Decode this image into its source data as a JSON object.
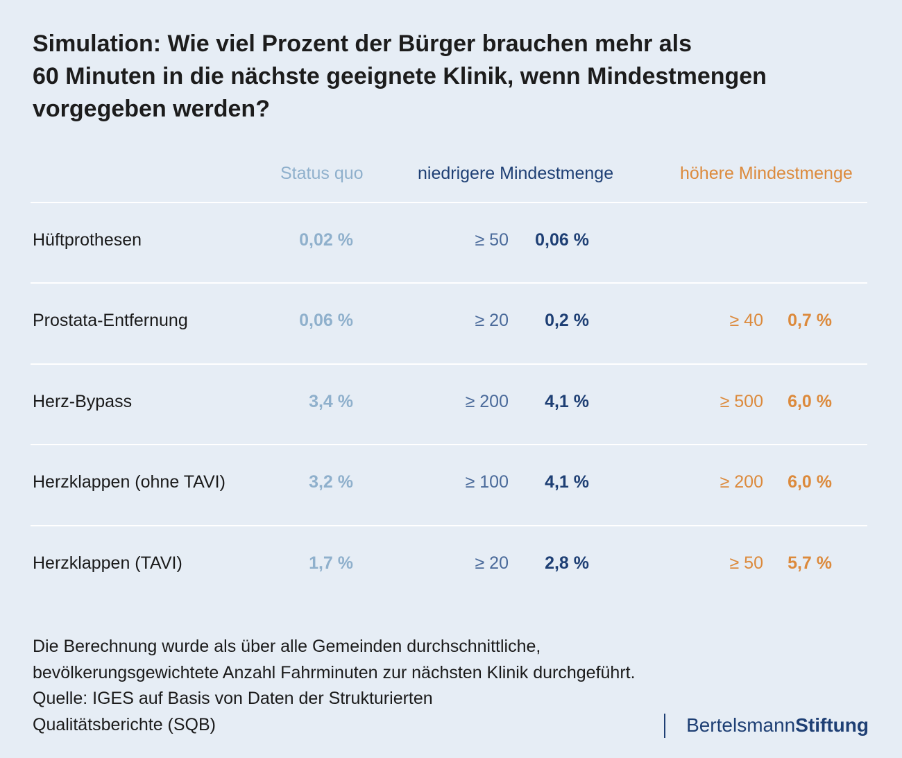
{
  "title_lines": [
    "Simulation: Wie viel Prozent der Bürger brauchen mehr als",
    "60 Minuten in die nächste geeignete Klinik, wenn Mindestmengen",
    "vorgegeben werden?"
  ],
  "chart_data": {
    "type": "table",
    "columns": {
      "status": "Status quo",
      "lower": "niedrigere Mindestmenge",
      "higher": "höhere Mindestmenge"
    },
    "rows": [
      {
        "label": "Hüftprothesen",
        "status": "0,02 %",
        "lower_threshold": "≥ 50",
        "lower_value": "0,06 %",
        "higher_threshold": "",
        "higher_value": ""
      },
      {
        "label": "Prostata-Entfernung",
        "status": "0,06 %",
        "lower_threshold": "≥ 20",
        "lower_value": "0,2 %",
        "higher_threshold": "≥ 40",
        "higher_value": "0,7 %"
      },
      {
        "label": "Herz-Bypass",
        "status": "3,4 %",
        "lower_threshold": "≥ 200",
        "lower_value": "4,1 %",
        "higher_threshold": "≥ 500",
        "higher_value": "6,0 %"
      },
      {
        "label": "Herzklappen (ohne TAVI)",
        "status": "3,2 %",
        "lower_threshold": "≥ 100",
        "lower_value": "4,1 %",
        "higher_threshold": "≥ 200",
        "higher_value": "6,0 %"
      },
      {
        "label": "Herzklappen (TAVI)",
        "status": "1,7 %",
        "lower_threshold": "≥ 20",
        "lower_value": "2,8 %",
        "higher_threshold": "≥ 50",
        "higher_value": "5,7 %"
      }
    ]
  },
  "note_lines": [
    "Die Berechnung wurde als über alle Gemeinden durchschnittliche,",
    "bevölkerungsgewichtete Anzahl Fahrminuten zur nächsten Klinik durchgeführt.",
    "Quelle: IGES auf Basis von Daten der Strukturierten",
    "Qualitätsberichte (SQB)"
  ],
  "logo": {
    "part1": "Bertelsmann",
    "part2": "Stiftung"
  },
  "colors": {
    "background": "#e6edf5",
    "status": "#8fb0cc",
    "lower": "#1e3f74",
    "higher": "#dc8a3c"
  }
}
